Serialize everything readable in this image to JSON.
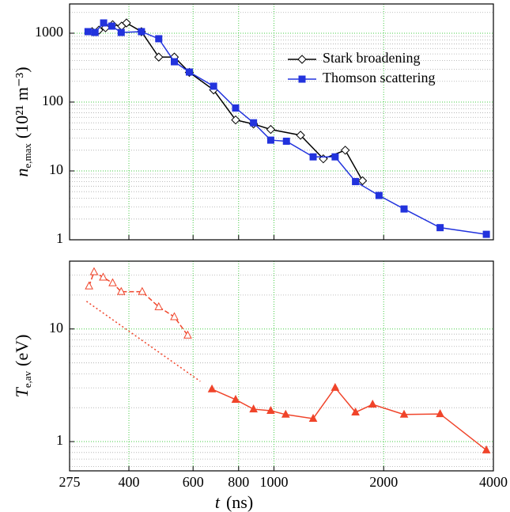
{
  "chart_data": [
    {
      "type": "line",
      "log_x": true,
      "log_y": true,
      "grid": true,
      "ylabel": {
        "symbol": "n",
        "subscript": "e,max",
        "unit": "(10²¹ m⁻³)"
      },
      "xlim": [
        275,
        4000
      ],
      "xticks": [
        275,
        400,
        600,
        800,
        1000,
        2000,
        4000
      ],
      "ylim": [
        1,
        2660
      ],
      "yticks": [
        1,
        10,
        100,
        1000
      ],
      "y_minor_ticks": [
        2,
        3,
        4,
        5,
        6,
        7,
        8,
        9,
        20,
        30,
        40,
        50,
        60,
        70,
        80,
        90,
        200,
        300,
        400,
        500,
        600,
        700,
        800,
        900,
        2000
      ],
      "legend": "upper right",
      "series": [
        {
          "name": "Stark broadening",
          "color": "#000000",
          "marker": "diamond",
          "filled": false,
          "linestyle": "solid",
          "x": [
            317,
            331,
            345,
            361,
            382,
            394,
            433,
            483,
            533,
            586,
            683,
            785,
            879,
            980,
            1183,
            1366,
            1569,
            1750
          ],
          "values": [
            1054,
            1110,
            1200,
            1330,
            1268,
            1410,
            1054,
            450,
            450,
            270,
            150,
            55,
            48,
            40,
            33,
            15,
            20,
            7.2
          ]
        },
        {
          "name": "Thomson scattering",
          "color": "#2233dd",
          "marker": "square",
          "filled": true,
          "linestyle": "solid",
          "x": [
            309,
            323,
            341,
            359,
            381,
            433,
            483,
            533,
            586,
            683,
            785,
            879,
            980,
            1082,
            1281,
            1472,
            1674,
            1942,
            2275,
            2857,
            3826
          ],
          "values": [
            1054,
            1026,
            1410,
            1268,
            1026,
            1054,
            831,
            385,
            273,
            170,
            82,
            50,
            28,
            27,
            16,
            16,
            7,
            4.4,
            2.8,
            1.5,
            1.2
          ]
        }
      ]
    },
    {
      "type": "line",
      "log_x": true,
      "log_y": true,
      "grid": true,
      "ylabel": {
        "symbol": "T",
        "subscript": "e,av",
        "unit": "(eV)"
      },
      "xlabel": {
        "symbol": "t",
        "unit": "(ns)"
      },
      "xlim": [
        275,
        4000
      ],
      "xticks": [
        275,
        400,
        600,
        800,
        1000,
        2000,
        4000
      ],
      "ylim": [
        0.55,
        40
      ],
      "yticks": [
        1,
        10
      ],
      "y_minor_ticks": [
        0.6,
        0.7,
        0.8,
        0.9,
        2,
        3,
        4,
        5,
        6,
        7,
        8,
        9,
        20,
        30
      ],
      "series": [
        {
          "color": "#f0442a",
          "marker": "triangle",
          "filled": false,
          "linestyle": "dashed",
          "x": [
            311,
            321,
            340,
            361,
            381,
            435,
            483,
            533,
            580
          ],
          "values": [
            24.0,
            32.1,
            28.7,
            25.6,
            21.4,
            21.4,
            15.7,
            12.8,
            8.78
          ]
        },
        {
          "color": "#f0442a",
          "marker": "triangle",
          "filled": true,
          "linestyle": "solid",
          "x": [
            676,
            785,
            879,
            980,
            1077,
            1281,
            1472,
            1674,
            1865,
            2275,
            2857,
            3826
          ],
          "values": [
            2.92,
            2.36,
            1.94,
            1.88,
            1.74,
            1.6,
            3.01,
            1.82,
            2.14,
            1.74,
            1.76,
            0.84
          ]
        },
        {
          "color": "#f0442a",
          "marker": "none",
          "filled": false,
          "linestyle": "dotted",
          "x": [
            306,
            628
          ],
          "values": [
            17.6,
            3.43
          ]
        }
      ]
    }
  ]
}
